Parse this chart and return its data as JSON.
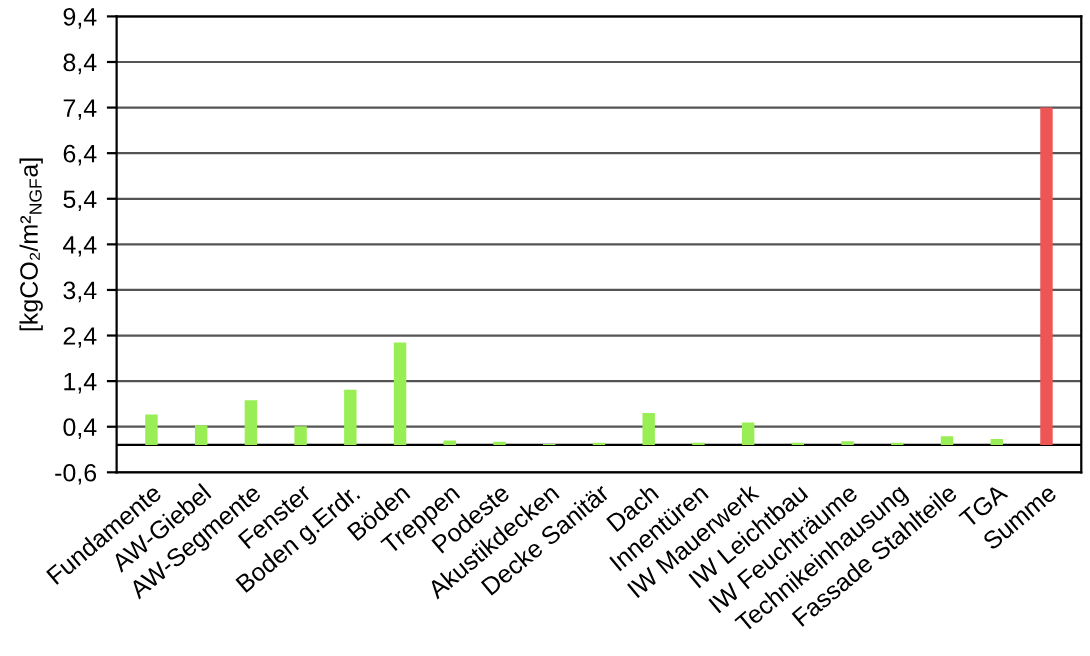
{
  "chart_data": {
    "type": "bar",
    "ylabel": "[kgCO₂/m²$_{NGF}$a]",
    "categories": [
      "Fundamente",
      "AW-Giebel",
      "AW-Segmente",
      "Fenster",
      "Boden g.Erdr.",
      "Böden",
      "Treppen",
      "Podeste",
      "Akustikdecken",
      "Decke Sanitär",
      "Dach",
      "Innentüren",
      "IW Mauerwerk",
      "IW Leichtbau",
      "IW Feuchträume",
      "Technikeinhausung",
      "Fassade Stahlteile",
      "TGA",
      "Summe"
    ],
    "values": [
      0.67,
      0.43,
      0.98,
      0.41,
      1.21,
      2.25,
      0.1,
      0.07,
      0.02,
      0.05,
      0.7,
      0.05,
      0.49,
      0.05,
      0.08,
      0.05,
      0.19,
      0.13,
      7.4
    ],
    "colors": [
      "#99ee55",
      "#99ee55",
      "#99ee55",
      "#99ee55",
      "#99ee55",
      "#99ee55",
      "#99ee55",
      "#99ee55",
      "#99ee55",
      "#99ee55",
      "#99ee55",
      "#99ee55",
      "#99ee55",
      "#99ee55",
      "#99ee55",
      "#99ee55",
      "#99ee55",
      "#99ee55",
      "#ee5555"
    ],
    "ylim": [
      -0.6,
      9.4
    ],
    "yticks": [
      {
        "value": -0.6,
        "label": "-0,6"
      },
      {
        "value": 0.4,
        "label": "0,4"
      },
      {
        "value": 1.4,
        "label": "1,4"
      },
      {
        "value": 2.4,
        "label": "2,4"
      },
      {
        "value": 3.4,
        "label": "3,4"
      },
      {
        "value": 4.4,
        "label": "4,4"
      },
      {
        "value": 5.4,
        "label": "5,4"
      },
      {
        "value": 6.4,
        "label": "6,4"
      },
      {
        "value": 7.4,
        "label": "7,4"
      },
      {
        "value": 8.4,
        "label": "8,4"
      },
      {
        "value": 9.4,
        "label": "9,4"
      }
    ],
    "grid": "y"
  }
}
